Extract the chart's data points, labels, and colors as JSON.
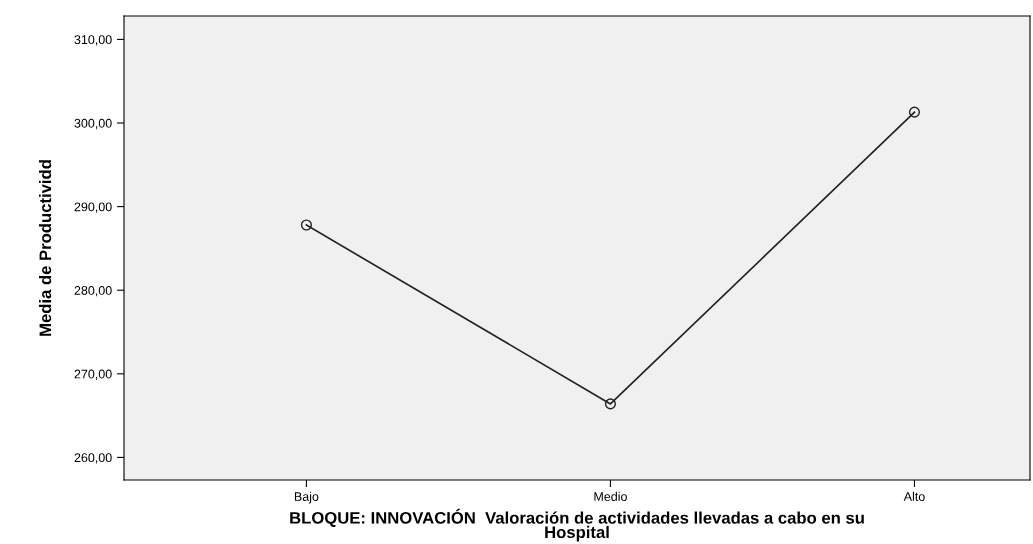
{
  "chart_data": {
    "type": "line",
    "xlabel": "BLOQUE: INNOVACIÓN  Valoración de actividades llevadas a cabo en su\nHospital",
    "ylabel": "Media de Productividd",
    "categories": [
      "Bajo",
      "Medio",
      "Alto"
    ],
    "series": [
      {
        "color": "#222222",
        "values": [
          287.8,
          266.4,
          301.3
        ]
      }
    ],
    "ylim": [
      257.3,
      312.8
    ],
    "yticks": [
      {
        "value": 260,
        "label": "260,00"
      },
      {
        "value": 270,
        "label": "270,00"
      },
      {
        "value": 280,
        "label": "280,00"
      },
      {
        "value": 290,
        "label": "290,00"
      },
      {
        "value": 300,
        "label": "300,00"
      },
      {
        "value": 310,
        "label": "310,00"
      }
    ],
    "marker": "circle",
    "line_style": "solid",
    "grid": false,
    "legend": false
  }
}
